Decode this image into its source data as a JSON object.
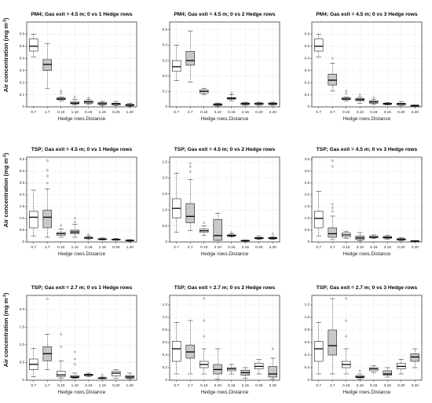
{
  "figure": {
    "y_axis_label": "Air concentration (mg m",
    "y_axis_label_sup": "-3",
    "y_axis_label_close": ")"
  },
  "colors": {
    "box_white": "#ffffff",
    "box_gray": "#c8c8c8",
    "grid": "#d6d6d6",
    "stroke": "#222222"
  },
  "chart_data": [
    {
      "type": "box",
      "title": "PM4; Gas exit = 4.5 m; 0 vs 1 Hedge rows",
      "xlabel": "Hedge rows.Distance",
      "categories": [
        "0.7",
        "1.7",
        "0.10",
        "1.10",
        "0.15",
        "1.15",
        "0.20",
        "1.20"
      ],
      "ylim": [
        0,
        0.7
      ],
      "yticks": [
        0,
        0.1,
        0.2,
        0.3,
        0.4,
        0.5,
        0.6
      ],
      "ytick_labels": [
        "0",
        "0.1",
        "0.2",
        "0.3",
        "0.4",
        "0.5",
        "0.6"
      ],
      "fills": [
        "white",
        "gray",
        "white",
        "gray",
        "white",
        "gray",
        "white",
        "gray"
      ],
      "boxes": [
        {
          "min": 0.41,
          "q1": 0.46,
          "median": 0.5,
          "q3": 0.56,
          "max": 0.6,
          "outliers": []
        },
        {
          "min": 0.15,
          "q1": 0.3,
          "median": 0.35,
          "q3": 0.39,
          "max": 0.52,
          "outliers": []
        },
        {
          "min": 0.05,
          "q1": 0.06,
          "median": 0.065,
          "q3": 0.075,
          "max": 0.08,
          "outliers": [
            0.11,
            0.13
          ]
        },
        {
          "min": 0.015,
          "q1": 0.025,
          "median": 0.03,
          "q3": 0.04,
          "max": 0.06,
          "outliers": [
            0.08
          ]
        },
        {
          "min": 0.02,
          "q1": 0.03,
          "median": 0.04,
          "q3": 0.05,
          "max": 0.06,
          "outliers": [
            0.075
          ]
        },
        {
          "min": 0.01,
          "q1": 0.02,
          "median": 0.025,
          "q3": 0.035,
          "max": 0.045,
          "outliers": []
        },
        {
          "min": 0.01,
          "q1": 0.015,
          "median": 0.025,
          "q3": 0.03,
          "max": 0.045,
          "outliers": []
        },
        {
          "min": 0.005,
          "q1": 0.01,
          "median": 0.015,
          "q3": 0.02,
          "max": 0.03,
          "outliers": []
        }
      ]
    },
    {
      "type": "box",
      "title": "PM4; Gas exit = 4.5 m; 0 vs 2 Hedge rows",
      "xlabel": "Hedge rows.Distance",
      "categories": [
        "0.7",
        "2.7",
        "0.10",
        "2.10",
        "0.15",
        "2.15",
        "0.20",
        "2.20"
      ],
      "ylim": [
        0,
        0.55
      ],
      "yticks": [
        0,
        0.1,
        0.2,
        0.3,
        0.4,
        0.5
      ],
      "ytick_labels": [
        "0",
        "0.1",
        "0.2",
        "0.3",
        "0.4",
        "0.5"
      ],
      "fills": [
        "white",
        "gray",
        "white",
        "gray",
        "white",
        "gray",
        "white",
        "gray"
      ],
      "boxes": [
        {
          "min": 0.17,
          "q1": 0.23,
          "median": 0.26,
          "q3": 0.3,
          "max": 0.4,
          "outliers": []
        },
        {
          "min": 0.16,
          "q1": 0.27,
          "median": 0.3,
          "q3": 0.36,
          "max": 0.49,
          "outliers": []
        },
        {
          "min": 0.08,
          "q1": 0.09,
          "median": 0.1,
          "q3": 0.11,
          "max": 0.12,
          "outliers": []
        },
        {
          "min": 0.005,
          "q1": 0.01,
          "median": 0.015,
          "q3": 0.02,
          "max": 0.025,
          "outliers": []
        },
        {
          "min": 0.04,
          "q1": 0.05,
          "median": 0.055,
          "q3": 0.06,
          "max": 0.08,
          "outliers": [
            0.09
          ]
        },
        {
          "min": 0.01,
          "q1": 0.015,
          "median": 0.02,
          "q3": 0.025,
          "max": 0.03,
          "outliers": []
        },
        {
          "min": 0.01,
          "q1": 0.015,
          "median": 0.02,
          "q3": 0.025,
          "max": 0.03,
          "outliers": []
        },
        {
          "min": 0.01,
          "q1": 0.015,
          "median": 0.02,
          "q3": 0.025,
          "max": 0.03,
          "outliers": []
        }
      ]
    },
    {
      "type": "box",
      "title": "PM4; Gas exit = 4.5 m; 0 vs 3 Hedge rows",
      "xlabel": "Hedge rows.Distance",
      "categories": [
        "0.7",
        "3.7",
        "0.10",
        "3.10",
        "0.15",
        "3.15",
        "0.20",
        "3.20"
      ],
      "ylim": [
        0,
        0.7
      ],
      "yticks": [
        0,
        0.1,
        0.2,
        0.3,
        0.4,
        0.5,
        0.6
      ],
      "ytick_labels": [
        "0",
        "0.1",
        "0.2",
        "0.3",
        "0.4",
        "0.5",
        "0.6"
      ],
      "fills": [
        "white",
        "gray",
        "white",
        "gray",
        "white",
        "gray",
        "white",
        "gray"
      ],
      "boxes": [
        {
          "min": 0.41,
          "q1": 0.46,
          "median": 0.5,
          "q3": 0.56,
          "max": 0.6,
          "outliers": []
        },
        {
          "min": 0.13,
          "q1": 0.18,
          "median": 0.22,
          "q3": 0.27,
          "max": 0.36,
          "outliers": [
            0.4
          ]
        },
        {
          "min": 0.05,
          "q1": 0.06,
          "median": 0.065,
          "q3": 0.075,
          "max": 0.08,
          "outliers": [
            0.11,
            0.13
          ]
        },
        {
          "min": 0.03,
          "q1": 0.05,
          "median": 0.06,
          "q3": 0.07,
          "max": 0.08,
          "outliers": [
            0.1
          ]
        },
        {
          "min": 0.02,
          "q1": 0.03,
          "median": 0.04,
          "q3": 0.05,
          "max": 0.06,
          "outliers": [
            0.075
          ]
        },
        {
          "min": 0.015,
          "q1": 0.02,
          "median": 0.025,
          "q3": 0.03,
          "max": 0.035,
          "outliers": []
        },
        {
          "min": 0.01,
          "q1": 0.015,
          "median": 0.025,
          "q3": 0.03,
          "max": 0.045,
          "outliers": []
        },
        {
          "min": 0.003,
          "q1": 0.006,
          "median": 0.01,
          "q3": 0.013,
          "max": 0.016,
          "outliers": []
        }
      ]
    },
    {
      "type": "box",
      "title": "TSP; Gas exit = 4.5 m; 0 vs 1 Hedge rows",
      "xlabel": "Hedge rows.Distance",
      "categories": [
        "0.7",
        "1.7",
        "0.10",
        "1.10",
        "0.15",
        "1.15",
        "0.20",
        "1.20"
      ],
      "ylim": [
        0,
        3.6
      ],
      "yticks": [
        0,
        0.5,
        1,
        1.5,
        2,
        2.5,
        3,
        3.5
      ],
      "ytick_labels": [
        "0",
        "0.5",
        "1.0",
        "1.5",
        "2.0",
        "2.5",
        "3.0",
        "3.5"
      ],
      "fills": [
        "white",
        "gray",
        "white",
        "gray",
        "white",
        "gray",
        "white",
        "gray"
      ],
      "boxes": [
        {
          "min": 0.25,
          "q1": 0.6,
          "median": 1.05,
          "q3": 1.3,
          "max": 2.2,
          "outliers": []
        },
        {
          "min": 0.2,
          "q1": 0.6,
          "median": 1.05,
          "q3": 1.35,
          "max": 2.25,
          "outliers": [
            2.5,
            2.8,
            3.05,
            3.45
          ]
        },
        {
          "min": 0.2,
          "q1": 0.28,
          "median": 0.35,
          "q3": 0.4,
          "max": 0.55,
          "outliers": [
            0.7
          ]
        },
        {
          "min": 0.2,
          "q1": 0.35,
          "median": 0.42,
          "q3": 0.5,
          "max": 0.75,
          "outliers": [
            0.85,
            1.0
          ]
        },
        {
          "min": 0.1,
          "q1": 0.15,
          "median": 0.17,
          "q3": 0.2,
          "max": 0.25,
          "outliers": [
            0.32
          ]
        },
        {
          "min": 0.08,
          "q1": 0.1,
          "median": 0.12,
          "q3": 0.14,
          "max": 0.17,
          "outliers": []
        },
        {
          "min": 0.07,
          "q1": 0.09,
          "median": 0.1,
          "q3": 0.12,
          "max": 0.15,
          "outliers": []
        },
        {
          "min": 0.03,
          "q1": 0.05,
          "median": 0.06,
          "q3": 0.08,
          "max": 0.1,
          "outliers": []
        }
      ]
    },
    {
      "type": "box",
      "title": "TSP; Gas exit = 4.5 m; 0 vs 2 Hedge rows",
      "xlabel": "Hedge rows.Distance",
      "categories": [
        "0.7",
        "2.7",
        "0.10",
        "2.10",
        "0.15",
        "2.15",
        "0.20",
        "2.20"
      ],
      "ylim": [
        0,
        2.65
      ],
      "yticks": [
        0,
        0.5,
        1,
        1.5,
        2,
        2.5
      ],
      "ytick_labels": [
        "0",
        "0.5",
        "1.0",
        "1.5",
        "2.0",
        "2.5"
      ],
      "fills": [
        "white",
        "gray",
        "white",
        "gray",
        "white",
        "gray",
        "white",
        "gray"
      ],
      "boxes": [
        {
          "min": 0.3,
          "q1": 0.75,
          "median": 1.05,
          "q3": 1.35,
          "max": 2.15,
          "outliers": []
        },
        {
          "min": 0.35,
          "q1": 0.6,
          "median": 0.8,
          "q3": 1.2,
          "max": 1.95,
          "outliers": [
            2.2,
            2.35,
            2.45
          ]
        },
        {
          "min": 0.2,
          "q1": 0.3,
          "median": 0.35,
          "q3": 0.4,
          "max": 0.5,
          "outliers": [
            0.6
          ]
        },
        {
          "min": 0.05,
          "q1": 0.05,
          "median": 0.2,
          "q3": 0.7,
          "max": 0.9,
          "outliers": []
        },
        {
          "min": 0.15,
          "q1": 0.18,
          "median": 0.2,
          "q3": 0.22,
          "max": 0.25,
          "outliers": [
            0.3
          ]
        },
        {
          "min": 0.02,
          "q1": 0.03,
          "median": 0.04,
          "q3": 0.05,
          "max": 0.06,
          "outliers": []
        },
        {
          "min": 0.08,
          "q1": 0.1,
          "median": 0.12,
          "q3": 0.14,
          "max": 0.18,
          "outliers": []
        },
        {
          "min": 0.08,
          "q1": 0.1,
          "median": 0.12,
          "q3": 0.14,
          "max": 0.17,
          "outliers": [
            0.25
          ]
        }
      ]
    },
    {
      "type": "box",
      "title": "TSP; Gas exit = 4.5 m; 0 vs 3 Hedge rows",
      "xlabel": "Hedge rows.Distance",
      "categories": [
        "0.7",
        "3.7",
        "0.10",
        "3.10",
        "0.15",
        "3.15",
        "0.20",
        "3.20"
      ],
      "ylim": [
        0,
        3.6
      ],
      "yticks": [
        0,
        0.5,
        1,
        1.5,
        2,
        2.5,
        3,
        3.5
      ],
      "ytick_labels": [
        "0",
        "0.5",
        "1.0",
        "1.5",
        "2.0",
        "2.5",
        "3.0",
        "3.5"
      ],
      "fills": [
        "white",
        "gray",
        "white",
        "gray",
        "white",
        "gray",
        "white",
        "gray"
      ],
      "boxes": [
        {
          "min": 0.25,
          "q1": 0.6,
          "median": 1.0,
          "q3": 1.3,
          "max": 2.15,
          "outliers": []
        },
        {
          "min": 0.1,
          "q1": 0.2,
          "median": 0.35,
          "q3": 0.6,
          "max": 1.1,
          "outliers": [
            1.3,
            1.45,
            1.6,
            3.2,
            3.45
          ]
        },
        {
          "min": 0.15,
          "q1": 0.22,
          "median": 0.3,
          "q3": 0.38,
          "max": 0.45,
          "outliers": []
        },
        {
          "min": 0.05,
          "q1": 0.1,
          "median": 0.17,
          "q3": 0.25,
          "max": 0.4,
          "outliers": []
        },
        {
          "min": 0.15,
          "q1": 0.18,
          "median": 0.2,
          "q3": 0.25,
          "max": 0.3,
          "outliers": []
        },
        {
          "min": 0.12,
          "q1": 0.16,
          "median": 0.19,
          "q3": 0.23,
          "max": 0.28,
          "outliers": []
        },
        {
          "min": 0.05,
          "q1": 0.08,
          "median": 0.11,
          "q3": 0.14,
          "max": 0.18,
          "outliers": []
        },
        {
          "min": 0.02,
          "q1": 0.03,
          "median": 0.04,
          "q3": 0.05,
          "max": 0.06,
          "outliers": []
        }
      ]
    },
    {
      "type": "box",
      "title": "TSP; Gas exit = 2.7 m; 0 vs 1 Hedge rows",
      "xlabel": "Hedge rows.Distance",
      "categories": [
        "0.7",
        "1.7",
        "0.10",
        "1.10",
        "0.15",
        "1.15",
        "0.20",
        "1.20"
      ],
      "ylim": [
        0,
        2.4
      ],
      "yticks": [
        0,
        0.5,
        1,
        1.5,
        2
      ],
      "ytick_labels": [
        "0",
        "0.5",
        "1.0",
        "1.5",
        "2.0"
      ],
      "fills": [
        "white",
        "gray",
        "white",
        "gray",
        "white",
        "gray",
        "white",
        "gray"
      ],
      "boxes": [
        {
          "min": 0.1,
          "q1": 0.3,
          "median": 0.45,
          "q3": 0.6,
          "max": 0.9,
          "outliers": []
        },
        {
          "min": 0.3,
          "q1": 0.55,
          "median": 0.75,
          "q3": 0.95,
          "max": 1.3,
          "outliers": [
            2.3
          ]
        },
        {
          "min": 0.05,
          "q1": 0.1,
          "median": 0.15,
          "q3": 0.25,
          "max": 0.55,
          "outliers": [
            0.95,
            1.3
          ]
        },
        {
          "min": 0.05,
          "q1": 0.07,
          "median": 0.09,
          "q3": 0.13,
          "max": 0.2,
          "outliers": [
            0.45,
            0.6,
            0.8
          ]
        },
        {
          "min": 0.1,
          "q1": 0.13,
          "median": 0.15,
          "q3": 0.17,
          "max": 0.2,
          "outliers": []
        },
        {
          "min": 0.04,
          "q1": 0.05,
          "median": 0.06,
          "q3": 0.07,
          "max": 0.09,
          "outliers": [
            0.15
          ]
        },
        {
          "min": 0.05,
          "q1": 0.12,
          "median": 0.2,
          "q3": 0.25,
          "max": 0.3,
          "outliers": []
        },
        {
          "min": 0.03,
          "q1": 0.06,
          "median": 0.09,
          "q3": 0.13,
          "max": 0.2,
          "outliers": []
        }
      ]
    },
    {
      "type": "box",
      "title": "TSP; Gas exit = 2.7 m; 0 vs 2 Hedge rows",
      "xlabel": "Hedge rows.Distance",
      "categories": [
        "0.7",
        "2.7",
        "0.10",
        "2.10",
        "0.15",
        "2.15",
        "0.20",
        "2.20"
      ],
      "ylim": [
        0,
        1.35
      ],
      "yticks": [
        0,
        0.2,
        0.4,
        0.6,
        0.8,
        1.0,
        1.2
      ],
      "ytick_labels": [
        "0",
        "0.2",
        "0.4",
        "0.6",
        "0.8",
        "1.0",
        "1.2"
      ],
      "fills": [
        "white",
        "gray",
        "white",
        "gray",
        "white",
        "gray",
        "white",
        "gray"
      ],
      "boxes": [
        {
          "min": 0.1,
          "q1": 0.3,
          "median": 0.5,
          "q3": 0.62,
          "max": 0.92,
          "outliers": []
        },
        {
          "min": 0.1,
          "q1": 0.35,
          "median": 0.45,
          "q3": 0.56,
          "max": 0.95,
          "outliers": []
        },
        {
          "min": 0.1,
          "q1": 0.2,
          "median": 0.25,
          "q3": 0.3,
          "max": 0.5,
          "outliers": [
            0.7,
            0.95,
            1.3
          ]
        },
        {
          "min": 0.02,
          "q1": 0.1,
          "median": 0.17,
          "q3": 0.25,
          "max": 0.5,
          "outliers": []
        },
        {
          "min": 0.1,
          "q1": 0.15,
          "median": 0.18,
          "q3": 0.2,
          "max": 0.25,
          "outliers": []
        },
        {
          "min": 0.03,
          "q1": 0.08,
          "median": 0.12,
          "q3": 0.16,
          "max": 0.2,
          "outliers": []
        },
        {
          "min": 0.1,
          "q1": 0.18,
          "median": 0.22,
          "q3": 0.27,
          "max": 0.33,
          "outliers": []
        },
        {
          "min": 0.02,
          "q1": 0.05,
          "median": 0.1,
          "q3": 0.22,
          "max": 0.35,
          "outliers": [
            0.5
          ]
        }
      ]
    },
    {
      "type": "box",
      "title": "TSP; Gas exit = 2.7 m; 0 vs 3 Hedge rows",
      "xlabel": "Hedge rows.Distance",
      "categories": [
        "0.7",
        "3.7",
        "0.10",
        "3.10",
        "0.15",
        "3.15",
        "0.20",
        "3.20"
      ],
      "ylim": [
        0,
        1.35
      ],
      "yticks": [
        0,
        0.2,
        0.4,
        0.6,
        0.8,
        1.0,
        1.2
      ],
      "ytick_labels": [
        "0",
        "0.2",
        "0.4",
        "0.6",
        "0.8",
        "1.0",
        "1.2"
      ],
      "fills": [
        "white",
        "gray",
        "white",
        "gray",
        "white",
        "gray",
        "white",
        "gray"
      ],
      "boxes": [
        {
          "min": 0.1,
          "q1": 0.3,
          "median": 0.5,
          "q3": 0.62,
          "max": 0.92,
          "outliers": []
        },
        {
          "min": 0.1,
          "q1": 0.4,
          "median": 0.55,
          "q3": 0.8,
          "max": 1.3,
          "outliers": []
        },
        {
          "min": 0.1,
          "q1": 0.2,
          "median": 0.25,
          "q3": 0.3,
          "max": 0.5,
          "outliers": [
            0.7,
            0.95,
            1.3
          ]
        },
        {
          "min": 0.02,
          "q1": 0.04,
          "median": 0.05,
          "q3": 0.07,
          "max": 0.1,
          "outliers": [
            0.15
          ]
        },
        {
          "min": 0.12,
          "q1": 0.15,
          "median": 0.18,
          "q3": 0.2,
          "max": 0.23,
          "outliers": []
        },
        {
          "min": 0.05,
          "q1": 0.08,
          "median": 0.1,
          "q3": 0.15,
          "max": 0.2,
          "outliers": []
        },
        {
          "min": 0.1,
          "q1": 0.18,
          "median": 0.22,
          "q3": 0.27,
          "max": 0.33,
          "outliers": []
        },
        {
          "min": 0.2,
          "q1": 0.3,
          "median": 0.37,
          "q3": 0.42,
          "max": 0.5,
          "outliers": []
        }
      ]
    }
  ]
}
